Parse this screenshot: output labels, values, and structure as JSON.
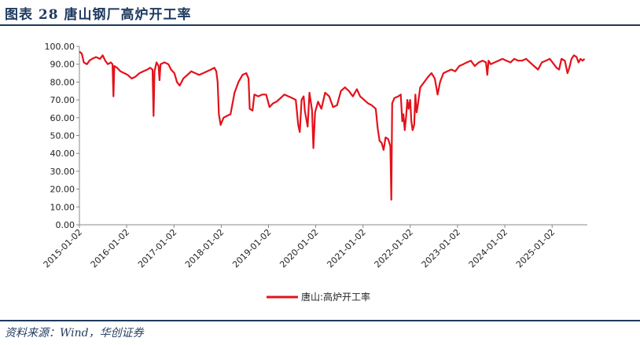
{
  "header": {
    "title": "图表 28   唐山钢厂高炉开工率"
  },
  "footer": {
    "source": "资料来源：Wind，华创证券"
  },
  "colors": {
    "brand": "#1f3a5f",
    "series": "#e3121b"
  },
  "chart_data": {
    "type": "line",
    "title": "",
    "xlabel": "",
    "ylabel": "",
    "ylim": [
      0,
      100
    ],
    "yticks": [
      "0.00",
      "10.00",
      "20.00",
      "30.00",
      "40.00",
      "50.00",
      "60.00",
      "70.00",
      "80.00",
      "90.00",
      "100.00"
    ],
    "xlim": [
      "2015-01-02",
      "2025-10-01"
    ],
    "xticks": [
      "2015-01-02",
      "2016-01-02",
      "2017-01-02",
      "2018-01-02",
      "2019-01-02",
      "2020-01-02",
      "2021-01-02",
      "2022-01-02",
      "2023-01-02",
      "2024-01-02",
      "2025-01-02"
    ],
    "grid": false,
    "legend": "bottom-center",
    "series": [
      {
        "name": "唐山:高炉开工率",
        "color": "#e3121b",
        "points": [
          [
            "2015-01-02",
            97
          ],
          [
            "2015-01-20",
            96
          ],
          [
            "2015-02-05",
            91
          ],
          [
            "2015-03-01",
            90
          ],
          [
            "2015-03-20",
            92
          ],
          [
            "2015-04-10",
            93
          ],
          [
            "2015-05-10",
            94
          ],
          [
            "2015-06-10",
            93
          ],
          [
            "2015-07-01",
            95
          ],
          [
            "2015-07-20",
            92
          ],
          [
            "2015-08-10",
            90
          ],
          [
            "2015-09-01",
            91
          ],
          [
            "2015-09-15",
            90
          ],
          [
            "2015-09-22",
            72
          ],
          [
            "2015-09-29",
            89
          ],
          [
            "2015-10-20",
            88
          ],
          [
            "2015-11-15",
            86
          ],
          [
            "2015-12-15",
            85
          ],
          [
            "2016-01-10",
            84
          ],
          [
            "2016-02-10",
            82
          ],
          [
            "2016-03-10",
            83
          ],
          [
            "2016-04-10",
            85
          ],
          [
            "2016-05-10",
            86
          ],
          [
            "2016-06-10",
            87
          ],
          [
            "2016-07-01",
            88
          ],
          [
            "2016-07-20",
            87
          ],
          [
            "2016-07-28",
            61
          ],
          [
            "2016-08-04",
            86
          ],
          [
            "2016-08-20",
            91
          ],
          [
            "2016-09-05",
            89
          ],
          [
            "2016-09-12",
            81
          ],
          [
            "2016-09-20",
            90
          ],
          [
            "2016-10-20",
            91
          ],
          [
            "2016-11-20",
            90
          ],
          [
            "2016-12-10",
            87
          ],
          [
            "2017-01-05",
            85
          ],
          [
            "2017-01-25",
            80
          ],
          [
            "2017-02-15",
            78
          ],
          [
            "2017-03-15",
            82
          ],
          [
            "2017-04-15",
            84
          ],
          [
            "2017-05-15",
            86
          ],
          [
            "2017-06-15",
            85
          ],
          [
            "2017-07-15",
            84
          ],
          [
            "2017-08-15",
            85
          ],
          [
            "2017-09-15",
            86
          ],
          [
            "2017-10-15",
            87
          ],
          [
            "2017-11-10",
            88
          ],
          [
            "2017-11-25",
            86
          ],
          [
            "2017-12-05",
            80
          ],
          [
            "2017-12-15",
            62
          ],
          [
            "2017-12-28",
            56
          ],
          [
            "2018-01-20",
            60
          ],
          [
            "2018-02-15",
            61
          ],
          [
            "2018-03-15",
            62
          ],
          [
            "2018-04-15",
            74
          ],
          [
            "2018-05-15",
            80
          ],
          [
            "2018-06-15",
            84
          ],
          [
            "2018-07-15",
            85
          ],
          [
            "2018-08-01",
            82
          ],
          [
            "2018-08-10",
            65
          ],
          [
            "2018-09-01",
            64
          ],
          [
            "2018-09-15",
            73
          ],
          [
            "2018-10-15",
            72
          ],
          [
            "2018-11-15",
            73
          ],
          [
            "2018-12-15",
            73
          ],
          [
            "2019-01-10",
            66
          ],
          [
            "2019-02-05",
            68
          ],
          [
            "2019-03-05",
            69
          ],
          [
            "2019-04-05",
            71
          ],
          [
            "2019-05-05",
            73
          ],
          [
            "2019-06-05",
            72
          ],
          [
            "2019-07-05",
            71
          ],
          [
            "2019-08-01",
            70
          ],
          [
            "2019-08-20",
            56
          ],
          [
            "2019-09-01",
            52
          ],
          [
            "2019-09-15",
            70
          ],
          [
            "2019-10-01",
            72
          ],
          [
            "2019-10-10",
            64
          ],
          [
            "2019-11-01",
            55
          ],
          [
            "2019-11-15",
            74
          ],
          [
            "2019-12-05",
            64
          ],
          [
            "2019-12-15",
            43
          ],
          [
            "2019-12-28",
            63
          ],
          [
            "2020-01-20",
            69
          ],
          [
            "2020-02-15",
            65
          ],
          [
            "2020-03-15",
            74
          ],
          [
            "2020-04-15",
            72
          ],
          [
            "2020-05-15",
            66
          ],
          [
            "2020-06-15",
            67
          ],
          [
            "2020-07-15",
            75
          ],
          [
            "2020-08-15",
            77
          ],
          [
            "2020-09-15",
            75
          ],
          [
            "2020-10-15",
            72
          ],
          [
            "2020-11-15",
            76
          ],
          [
            "2020-12-10",
            72
          ],
          [
            "2021-01-10",
            70
          ],
          [
            "2021-02-10",
            68
          ],
          [
            "2021-03-10",
            67
          ],
          [
            "2021-04-10",
            65
          ],
          [
            "2021-04-25",
            54
          ],
          [
            "2021-05-10",
            47
          ],
          [
            "2021-05-25",
            46
          ],
          [
            "2021-06-10",
            42
          ],
          [
            "2021-06-25",
            49
          ],
          [
            "2021-07-15",
            48
          ],
          [
            "2021-08-01",
            44
          ],
          [
            "2021-08-08",
            14
          ],
          [
            "2021-08-15",
            68
          ],
          [
            "2021-09-01",
            71
          ],
          [
            "2021-10-01",
            72
          ],
          [
            "2021-10-20",
            73
          ],
          [
            "2021-11-01",
            58
          ],
          [
            "2021-11-10",
            62
          ],
          [
            "2021-11-20",
            53
          ],
          [
            "2021-12-01",
            61
          ],
          [
            "2021-12-10",
            70
          ],
          [
            "2021-12-20",
            65
          ],
          [
            "2022-01-01",
            70
          ],
          [
            "2022-01-10",
            58
          ],
          [
            "2022-01-20",
            53
          ],
          [
            "2022-02-01",
            56
          ],
          [
            "2022-02-10",
            73
          ],
          [
            "2022-02-20",
            63
          ],
          [
            "2022-03-01",
            67
          ],
          [
            "2022-03-20",
            77
          ],
          [
            "2022-04-20",
            80
          ],
          [
            "2022-05-20",
            83
          ],
          [
            "2022-06-15",
            85
          ],
          [
            "2022-07-10",
            82
          ],
          [
            "2022-08-01",
            73
          ],
          [
            "2022-08-20",
            80
          ],
          [
            "2022-09-15",
            85
          ],
          [
            "2022-10-15",
            86
          ],
          [
            "2022-11-15",
            87
          ],
          [
            "2022-12-15",
            86
          ],
          [
            "2023-01-15",
            89
          ],
          [
            "2023-02-15",
            90
          ],
          [
            "2023-03-15",
            91
          ],
          [
            "2023-04-15",
            92
          ],
          [
            "2023-05-15",
            89
          ],
          [
            "2023-06-15",
            91
          ],
          [
            "2023-07-15",
            92
          ],
          [
            "2023-08-10",
            91
          ],
          [
            "2023-08-20",
            84
          ],
          [
            "2023-08-30",
            92
          ],
          [
            "2023-09-15",
            90
          ],
          [
            "2023-10-15",
            91
          ],
          [
            "2023-11-15",
            92
          ],
          [
            "2023-12-15",
            93
          ],
          [
            "2024-01-15",
            92
          ],
          [
            "2024-02-15",
            91
          ],
          [
            "2024-03-15",
            93
          ],
          [
            "2024-04-15",
            92
          ],
          [
            "2024-05-15",
            92
          ],
          [
            "2024-06-15",
            93
          ],
          [
            "2024-07-15",
            91
          ],
          [
            "2024-08-15",
            89
          ],
          [
            "2024-09-15",
            87
          ],
          [
            "2024-10-15",
            91
          ],
          [
            "2024-11-15",
            92
          ],
          [
            "2024-12-15",
            93
          ],
          [
            "2025-01-15",
            90
          ],
          [
            "2025-02-05",
            88
          ],
          [
            "2025-02-25",
            87
          ],
          [
            "2025-03-15",
            93
          ],
          [
            "2025-04-10",
            92
          ],
          [
            "2025-05-01",
            85
          ],
          [
            "2025-05-15",
            88
          ],
          [
            "2025-06-01",
            93
          ],
          [
            "2025-06-20",
            95
          ],
          [
            "2025-07-10",
            94
          ],
          [
            "2025-07-25",
            91
          ],
          [
            "2025-08-10",
            93
          ],
          [
            "2025-08-25",
            92
          ],
          [
            "2025-09-10",
            93
          ]
        ]
      }
    ]
  }
}
